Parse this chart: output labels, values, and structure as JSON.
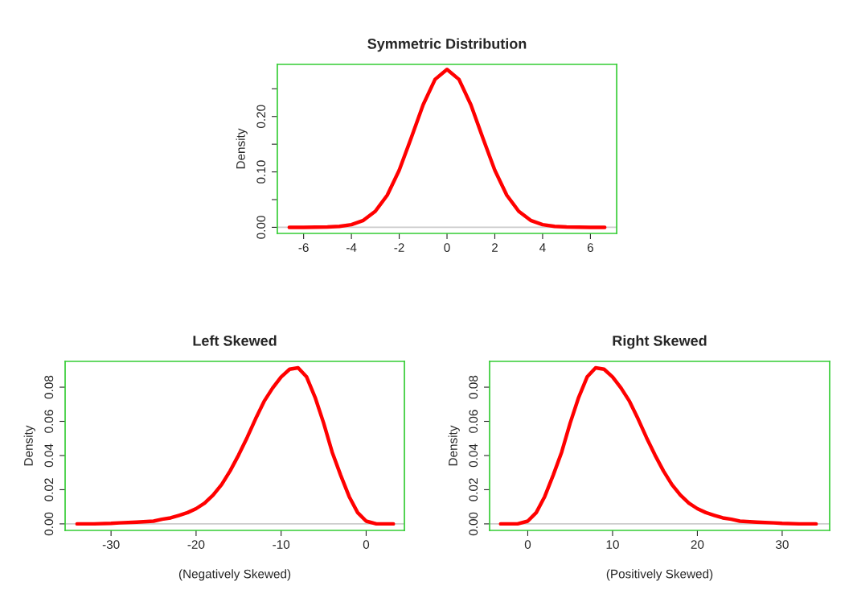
{
  "chart_data": [
    {
      "type": "line",
      "title": "Symmetric Distribution",
      "ylabel": "Density",
      "xlim": [
        -7.1,
        7.1
      ],
      "ylim": [
        -0.011,
        0.294
      ],
      "xticks": [
        -6,
        -4,
        -2,
        0,
        2,
        4,
        6
      ],
      "yticks": [
        {
          "value": 0,
          "label": "0.00"
        },
        {
          "value": 0.05,
          "label": null
        },
        {
          "value": 0.1,
          "label": "0.10"
        },
        {
          "value": 0.15,
          "label": null
        },
        {
          "value": 0.2,
          "label": "0.20"
        },
        {
          "value": 0.25,
          "label": null
        }
      ],
      "grid": false,
      "marker": "none",
      "line_style": "solid",
      "ref_lines": [
        {
          "axis": "y",
          "value": 0,
          "color": "#cccccc"
        }
      ],
      "x": [
        -6.6,
        -6,
        -5,
        -4.5,
        -4,
        -3.5,
        -3,
        -2.5,
        -2,
        -1.5,
        -1,
        -0.5,
        0,
        0.5,
        1,
        1.5,
        2,
        2.5,
        3,
        3.5,
        4,
        4.5,
        5,
        6,
        6.6
      ],
      "series": [
        {
          "color": "#ff0000",
          "values": [
            0,
            0,
            0.0005,
            0.0016,
            0.0048,
            0.0125,
            0.029,
            0.058,
            0.103,
            0.161,
            0.221,
            0.267,
            0.285,
            0.267,
            0.221,
            0.161,
            0.103,
            0.058,
            0.029,
            0.0125,
            0.0048,
            0.0016,
            0.0005,
            0,
            0
          ]
        }
      ]
    },
    {
      "type": "line",
      "title": "Left Skewed",
      "ylabel": "Density",
      "xlabel": "(Negatively Skewed)",
      "xlim": [
        -35.4,
        4.5
      ],
      "ylim": [
        -0.0038,
        0.0951
      ],
      "xticks": [
        -30,
        -20,
        -10,
        0
      ],
      "yticks": [
        {
          "value": 0,
          "label": "0.00"
        },
        {
          "value": 0.02,
          "label": "0.02"
        },
        {
          "value": 0.04,
          "label": "0.04"
        },
        {
          "value": 0.06,
          "label": "0.06"
        },
        {
          "value": 0.08,
          "label": "0.08"
        }
      ],
      "grid": false,
      "marker": "none",
      "line_style": "solid",
      "ref_lines": [
        {
          "axis": "y",
          "value": 0,
          "color": "#cccccc"
        }
      ],
      "x": [
        -34,
        -32,
        -30,
        -29,
        -27,
        -25,
        -24,
        -23,
        -22,
        -21,
        -20,
        -19,
        -18,
        -17,
        -16,
        -15,
        -14,
        -13,
        -12,
        -11,
        -10,
        -9,
        -8,
        -7,
        -6,
        -5,
        -4,
        -3,
        -2,
        -1,
        0,
        1.2,
        3.2
      ],
      "series": [
        {
          "color": "#ff0000",
          "values": [
            0,
            0,
            0.0003,
            0.0006,
            0.001,
            0.0016,
            0.0027,
            0.0035,
            0.005,
            0.0066,
            0.0089,
            0.0121,
            0.0168,
            0.023,
            0.031,
            0.0403,
            0.0505,
            0.0615,
            0.0717,
            0.0795,
            0.086,
            0.0905,
            0.0913,
            0.086,
            0.074,
            0.059,
            0.042,
            0.0285,
            0.016,
            0.0066,
            0.0016,
            0,
            0
          ]
        }
      ]
    },
    {
      "type": "line",
      "title": "Right Skewed",
      "ylabel": "Density",
      "xlabel": "(Positively Skewed)",
      "xlim": [
        -4.5,
        35.6
      ],
      "ylim": [
        -0.0038,
        0.0951
      ],
      "xticks": [
        0,
        10,
        20,
        30
      ],
      "yticks": [
        {
          "value": 0,
          "label": "0.00"
        },
        {
          "value": 0.02,
          "label": "0.02"
        },
        {
          "value": 0.04,
          "label": "0.04"
        },
        {
          "value": 0.06,
          "label": "0.06"
        },
        {
          "value": 0.08,
          "label": "0.08"
        }
      ],
      "grid": false,
      "marker": "none",
      "line_style": "solid",
      "ref_lines": [
        {
          "axis": "y",
          "value": 0,
          "color": "#cccccc"
        }
      ],
      "x": [
        -3.2,
        -1.2,
        0,
        1,
        2,
        3,
        4,
        5,
        6,
        7,
        8,
        9,
        10,
        11,
        12,
        13,
        14,
        15,
        16,
        17,
        18,
        19,
        20,
        21,
        22,
        23,
        24,
        25,
        27,
        29,
        30,
        32,
        34
      ],
      "series": [
        {
          "color": "#ff0000",
          "values": [
            0,
            0,
            0.0016,
            0.0066,
            0.016,
            0.0285,
            0.042,
            0.059,
            0.074,
            0.086,
            0.0913,
            0.0905,
            0.086,
            0.0795,
            0.0717,
            0.0615,
            0.0505,
            0.0403,
            0.031,
            0.023,
            0.0168,
            0.0121,
            0.0089,
            0.0066,
            0.005,
            0.0035,
            0.0027,
            0.0016,
            0.001,
            0.0006,
            0.0003,
            0,
            0
          ]
        }
      ]
    }
  ]
}
